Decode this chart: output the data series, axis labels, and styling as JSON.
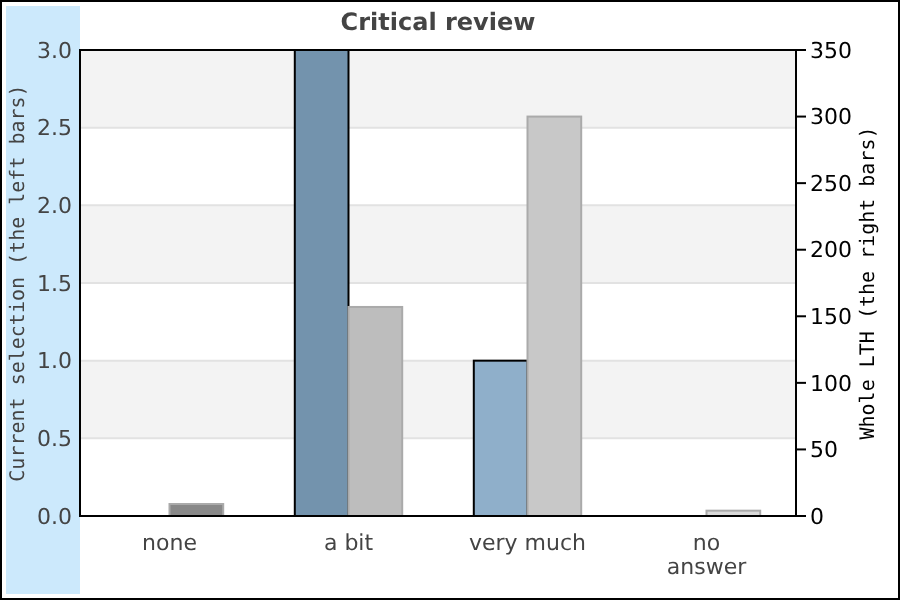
{
  "chart_data": {
    "type": "bar",
    "title": "Critical review",
    "ylabel": "Current selection (the left bars)",
    "y2label": "Whole LTH (the right bars)",
    "categories": [
      "none",
      "a bit",
      "very much",
      "no answer"
    ],
    "series": [
      {
        "colors": [
          "#8fafca",
          "#7393ad",
          "#8fafca",
          "#8fafca"
        ],
        "values": [
          0,
          3,
          1,
          0
        ]
      },
      {
        "colors": [
          "#888888",
          "#bdbdbd",
          "#c8c8c8",
          "#d9d9d9"
        ],
        "values": [
          9,
          157,
          300,
          4
        ],
        "axis": "y2"
      }
    ],
    "ylim": [
      0,
      3
    ],
    "yticks": [
      {
        "value": 0,
        "label": "0.0"
      },
      {
        "value": 0.5,
        "label": "0.5"
      },
      {
        "value": 1,
        "label": "1.0"
      },
      {
        "value": 1.5,
        "label": "1.5"
      },
      {
        "value": 2,
        "label": "2.0"
      },
      {
        "value": 2.5,
        "label": "2.5"
      },
      {
        "value": 3,
        "label": "3.0"
      }
    ],
    "y2lim": [
      0,
      350
    ],
    "y2ticks": [
      0,
      50,
      100,
      150,
      200,
      250,
      300,
      350
    ],
    "grid": "y"
  }
}
